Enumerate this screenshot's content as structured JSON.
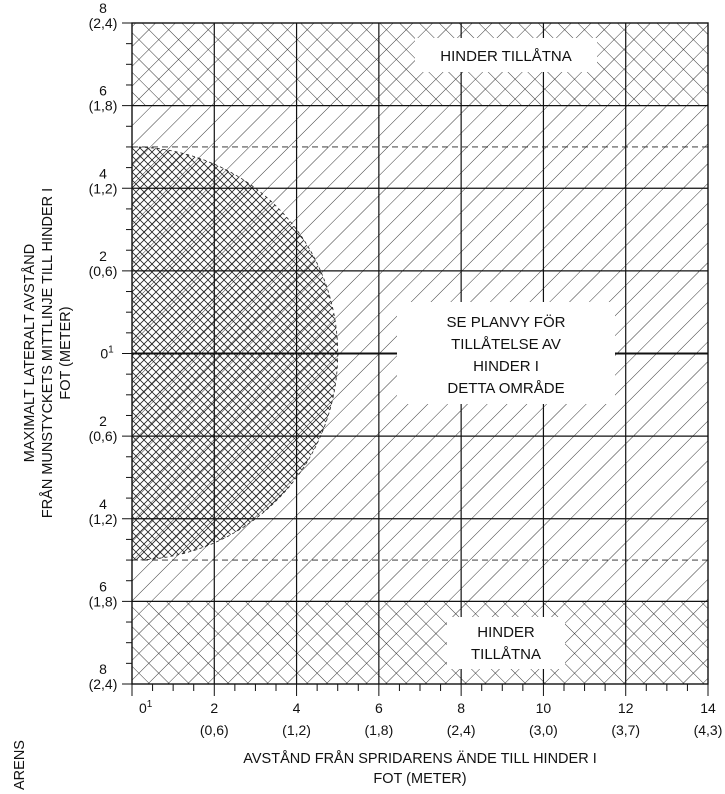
{
  "x_axis": {
    "title_line1": "AVSTÅND FRÅN SPRIDARENS ÄNDE TILL HINDER I",
    "title_line2": "FOT (METER)",
    "origin_label": "0",
    "origin_sup": "1",
    "ticks": [
      {
        "ft": 2,
        "label": "2",
        "m": "(0,6)"
      },
      {
        "ft": 4,
        "label": "4",
        "m": "(1,2)"
      },
      {
        "ft": 6,
        "label": "6",
        "m": "(1,8)"
      },
      {
        "ft": 8,
        "label": "8",
        "m": "(2,4)"
      },
      {
        "ft": 10,
        "label": "10",
        "m": "(3,0)"
      },
      {
        "ft": 12,
        "label": "12",
        "m": "(3,7)"
      },
      {
        "ft": 14,
        "label": "14",
        "m": "(4,3)"
      }
    ],
    "range": [
      0,
      14
    ]
  },
  "y_axis": {
    "title_line1": "MAXIMALT LATERALT AVSTÅND",
    "title_line2": "FRÅN MUNSTYCKETS MITTLINJE TILL HINDER I",
    "title_line3": "FOT (METER)",
    "center_label": "0",
    "center_sup": "1",
    "ticks": [
      {
        "ft": 8,
        "label": "8",
        "m": "(2,4)"
      },
      {
        "ft": 6,
        "label": "6",
        "m": "(1,8)"
      },
      {
        "ft": 4,
        "label": "4",
        "m": "(1,2)"
      },
      {
        "ft": 2,
        "label": "2",
        "m": "(0,6)"
      },
      {
        "ft": -2,
        "label": "2",
        "m": "(0,6)"
      },
      {
        "ft": -4,
        "label": "4",
        "m": "(1,2)"
      },
      {
        "ft": -6,
        "label": "6",
        "m": "(1,8)"
      },
      {
        "ft": -8,
        "label": "8",
        "m": "(2,4)"
      }
    ],
    "range": [
      -8,
      8
    ]
  },
  "zones": {
    "allowed_line_ft": 5,
    "ellipse_rx_ft": 5,
    "ellipse_ry_ft": 5
  },
  "notes": {
    "top_allowed": "HINDER TILLÅTNA",
    "bottom_allowed_line1": "HINDER",
    "bottom_allowed_line2": "TILLÅTNA",
    "plan_view_line1": "SE PLANVY FÖR",
    "plan_view_line2": "TILLÅTELSE AV",
    "plan_view_line3": "HINDER I",
    "plan_view_line4": "DETTA OMRÅDE"
  },
  "cropped_side_text": "ARENS"
}
